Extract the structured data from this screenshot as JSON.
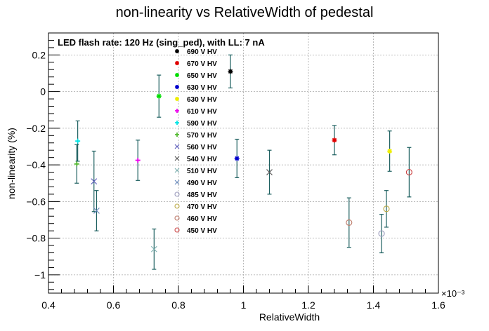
{
  "chart_data": {
    "type": "scatter",
    "title": "non-linearity vs RelativeWidth of pedestal",
    "subtitle": "LED flash rate: 120 Hz  (sing_ped), with LL: 7 nA",
    "xlabel": "RelativeWidth",
    "ylabel": "non-linearity (%)",
    "x_multiplier_label": "×10⁻³",
    "xlim": [
      0.4,
      1.6
    ],
    "ylim": [
      -1.1,
      0.32
    ],
    "xticks": [
      0.4,
      0.6,
      0.8,
      1.0,
      1.2,
      1.4,
      1.6
    ],
    "xtick_labels": [
      "0.4",
      "0.6",
      "0.8",
      "1",
      "1.2",
      "1.4",
      "1.6"
    ],
    "yticks": [
      -1.0,
      -0.8,
      -0.6,
      -0.4,
      -0.2,
      0.0,
      0.2
    ],
    "ytick_labels": [
      "−1",
      "−0.8",
      "−0.6",
      "−0.4",
      "−0.2",
      "0",
      "0.2"
    ],
    "grid": true,
    "legend_position": "top-left",
    "error_bar_color": "#1c5f5f",
    "series": [
      {
        "name": "690 V HV",
        "color": "#000000",
        "marker": "star",
        "x": 0.96,
        "y": 0.11,
        "err": 0.09
      },
      {
        "name": "670 V HV",
        "color": "#e00000",
        "marker": "star",
        "x": 1.28,
        "y": -0.265,
        "err": 0.08
      },
      {
        "name": "650 V HV",
        "color": "#00dd00",
        "marker": "star",
        "x": 0.74,
        "y": -0.025,
        "err": 0.115
      },
      {
        "name": "630 V HV",
        "color": "#0000cc",
        "marker": "star",
        "x": 0.98,
        "y": -0.365,
        "err": 0.105
      },
      {
        "name": "630 V HV",
        "color": "#eeee00",
        "marker": "star",
        "x": 1.45,
        "y": -0.325,
        "err": 0.11
      },
      {
        "name": "610 V HV",
        "color": "#ee00ee",
        "marker": "plus",
        "x": 0.675,
        "y": -0.375,
        "err": 0.11
      },
      {
        "name": "590 V HV",
        "color": "#00e5e5",
        "marker": "plus",
        "x": 0.49,
        "y": -0.27,
        "err": 0.11
      },
      {
        "name": "570 V HV",
        "color": "#55bb33",
        "marker": "plus",
        "x": 0.487,
        "y": -0.395,
        "err": 0.105
      },
      {
        "name": "560 V HV",
        "color": "#5858bb",
        "marker": "cross",
        "x": 0.54,
        "y": -0.49,
        "err": 0.165
      },
      {
        "name": "540 V HV",
        "color": "#555555",
        "marker": "cross",
        "x": 1.08,
        "y": -0.44,
        "err": 0.12
      },
      {
        "name": "510 V HV",
        "color": "#7aaeae",
        "marker": "cross",
        "x": 0.725,
        "y": -0.86,
        "err": 0.11
      },
      {
        "name": "490 V HV",
        "color": "#6688bb",
        "marker": "cross",
        "x": 0.548,
        "y": -0.65,
        "err": 0.11
      },
      {
        "name": "485 V HV",
        "color": "#9999bb",
        "marker": "circle",
        "x": 1.425,
        "y": -0.775,
        "err": 0.105
      },
      {
        "name": "470 V HV",
        "color": "#bbaa44",
        "marker": "circle",
        "x": 1.44,
        "y": -0.64,
        "err": 0.1
      },
      {
        "name": "460 V HV",
        "color": "#bb7766",
        "marker": "circle",
        "x": 1.325,
        "y": -0.715,
        "err": 0.135
      },
      {
        "name": "450 V HV",
        "color": "#cc4444",
        "marker": "circle",
        "x": 1.51,
        "y": -0.44,
        "err": 0.135
      }
    ]
  }
}
